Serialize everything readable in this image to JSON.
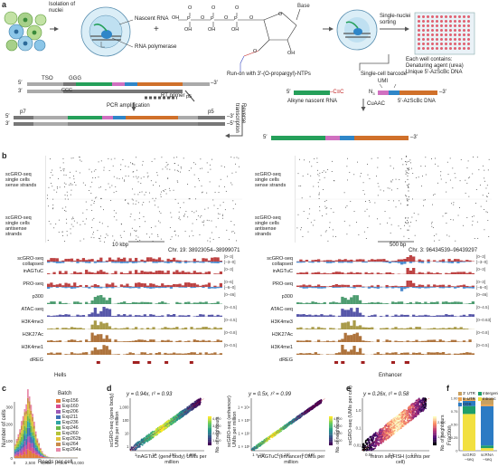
{
  "panels": {
    "a": "a",
    "b": "b",
    "c": "c",
    "d": "d",
    "e": "e",
    "f": "f"
  },
  "panel_a": {
    "isolation": "Isolation of nuclei",
    "nascent_rna": "Nascent RNA",
    "rna_pol": "RNA polymerase",
    "base": "Base",
    "run_on": "Run-on with 3′-(O-propargyl)-NTPs",
    "single_nuclei_sorting": "Single-nuclei sorting",
    "well_contains": "Each well contains:",
    "well_line1": "Denaturing agent (urea)",
    "well_line2": "Unique 5′-AzScBc DNA",
    "tso": "TSO",
    "ggg": "GGG",
    "ccc": "CCC",
    "rt_primer": "RT primer",
    "pcr": "PCR amplification",
    "p7": "p7",
    "p5": "p5",
    "p5b": "p5",
    "umi": "UMI",
    "barcode": "Single-cell barcode",
    "alkyne_rna": "Alkyne nascent RNA",
    "azscbc": "5′-AzScBc DNA",
    "cuaac": "CuAAC",
    "reverse_tx": "Reverse transcription",
    "n3": "N",
    "n3sub": "3",
    "c_eq_c": "–C≡C",
    "five_prime": "5′",
    "three_prime": "–3′",
    "three_prime_dash": "3′",
    "dash3": "–3′",
    "dash5": "–5′",
    "oh": "OH",
    "o": "O",
    "p": "P"
  },
  "panel_b": {
    "left": {
      "row1": "scGRO-seq single cells sense strands",
      "row2": "scGRO-seq single cells antisense strands",
      "scale": "10 kbp",
      "coords": "Chr. 19: 38923054–38999071",
      "gene": "Hells"
    },
    "right": {
      "row1": "scGRO-seq single cells sense strands",
      "row2": "scGRO-seq single cells antisense strands",
      "scale": "500 bp",
      "coords": "Chr. 3: 96434539–96439297",
      "gene": "Enhancer"
    },
    "tracks": [
      {
        "name": "scGRO-seq collapsed",
        "left": "[0–3]",
        "right": "[0–3]",
        "left_neg": "[–3–0]",
        "right_neg": "[–3–0]"
      },
      {
        "name": "inAGTuC",
        "left": "[0–3]",
        "right": "[0–3]"
      },
      {
        "name": "PRO-seq",
        "left": "[0–6]",
        "right": "[0–3]",
        "left_neg": "[–6–0]",
        "right_neg": "[–6–0]"
      },
      {
        "name": "p300",
        "left": "[0–46]",
        "right": "[0–46]"
      },
      {
        "name": "ATAC-seq",
        "left": "[0–4.5]",
        "right": "[0–4.5]"
      },
      {
        "name": "H3K4me3",
        "left": "[0–4.5]",
        "right": "[0–0.63]"
      },
      {
        "name": "H3K27Ac",
        "left": "[0–0.8]",
        "right": "[0–0.8]"
      },
      {
        "name": "H3K4me1",
        "left": "[0–0.5]",
        "right": "[0–0.5]"
      },
      {
        "name": "dREG",
        "left": "",
        "right": ""
      }
    ]
  },
  "panel_c": {
    "ylabel": "Number of cells",
    "xlabel": "Reads per cell",
    "legend_title": "Batch",
    "batches": [
      {
        "name": "Exp156",
        "color": "#e07b39"
      },
      {
        "name": "Exp160",
        "color": "#d94e8f"
      },
      {
        "name": "Exp206",
        "color": "#9b59b6"
      },
      {
        "name": "Exp211",
        "color": "#3f6fb5"
      },
      {
        "name": "Exp236",
        "color": "#2fa4a4"
      },
      {
        "name": "Exp246",
        "color": "#6bb84a"
      },
      {
        "name": "Exp260",
        "color": "#b5c43a"
      },
      {
        "name": "Exp262b",
        "color": "#e2c23a"
      },
      {
        "name": "Exp264",
        "color": "#c98b4a"
      },
      {
        "name": "Exp264a",
        "color": "#e88aaa"
      }
    ],
    "xticks": [
      "0",
      "2,500",
      "5,000",
      "7,500",
      "10,000"
    ],
    "yticks": [
      "0",
      "100",
      "200",
      "300"
    ]
  },
  "panel_d": {
    "left": {
      "eq": "y = 0.94x, r² = 0.93",
      "ylabel": "scGRO-seq (gene body) UMIs per million",
      "xlabel": "inAGTuC (gene body) UMIs per million",
      "xticks": [
        "1",
        "10",
        "100",
        "1,000"
      ],
      "yticks": [
        "1",
        "10",
        "100",
        "1,000"
      ],
      "cbar_label": "No. of neighbours",
      "cbar_ticks": [
        "1,000",
        "2,000",
        "3,000",
        "4,000"
      ]
    },
    "right": {
      "eq": "y = 0.5x, r² = 0.99",
      "ylabel": "scGRO-seq (enhancer) UMIs per million",
      "xlabel": "inAGTuC (enhancer) UMIs per million",
      "xticks": [
        "1 × 10¹",
        "1 × 10²",
        "1 × 10³"
      ],
      "yticks": [
        "1 × 10¹",
        "1 × 10²",
        "1 × 10³",
        "1 × 10⁴"
      ],
      "cbar_label": "No. of neighbours",
      "cbar_ticks": [
        "1,000",
        "2,000",
        "3,000",
        "4,000"
      ]
    }
  },
  "panel_e": {
    "eq": "y = 0.26x, r² = 0.58",
    "ylabel": "scGRO-seq (UMIs per cell)",
    "xlabel": "Intron seqFISH (counts per cell)",
    "xticks": [
      "0.01",
      "0.1",
      "1.0"
    ],
    "yticks": [
      "0.01",
      "0.1",
      "1.0"
    ],
    "cbar_label": "No. of neighbours",
    "cbar_ticks": [
      "1,000",
      "2,000"
    ]
  },
  "panel_f": {
    "ylabel": "Fraction",
    "yticks": [
      "0",
      "0.25",
      "0.50",
      "0.75",
      "1.00"
    ],
    "categories": [
      "scGRO –seq",
      "scRNA –seq"
    ],
    "legend": [
      {
        "name": "3′ UTR",
        "color": "#c8a060"
      },
      {
        "name": "5′ UTR",
        "color": "#f3a64b"
      },
      {
        "name": "CDS",
        "color": "#2b7bc4"
      },
      {
        "name": "Intergenic",
        "color": "#1f9e6a"
      },
      {
        "name": "Intronic",
        "color": "#f2e040"
      }
    ]
  },
  "chart_data": [
    {
      "type": "bar",
      "title": "",
      "stacked": true,
      "categories": [
        "scGRO–seq",
        "scRNA–seq"
      ],
      "ylabel": "Fraction",
      "ylim": [
        0,
        1
      ],
      "series": [
        {
          "name": "Intronic",
          "values": [
            0.7,
            0.05
          ]
        },
        {
          "name": "Intergenic",
          "values": [
            0.15,
            0.05
          ]
        },
        {
          "name": "CDS",
          "values": [
            0.1,
            0.75
          ]
        },
        {
          "name": "5′ UTR",
          "values": [
            0.02,
            0.03
          ]
        },
        {
          "name": "3′ UTR",
          "values": [
            0.03,
            0.12
          ]
        }
      ]
    }
  ]
}
